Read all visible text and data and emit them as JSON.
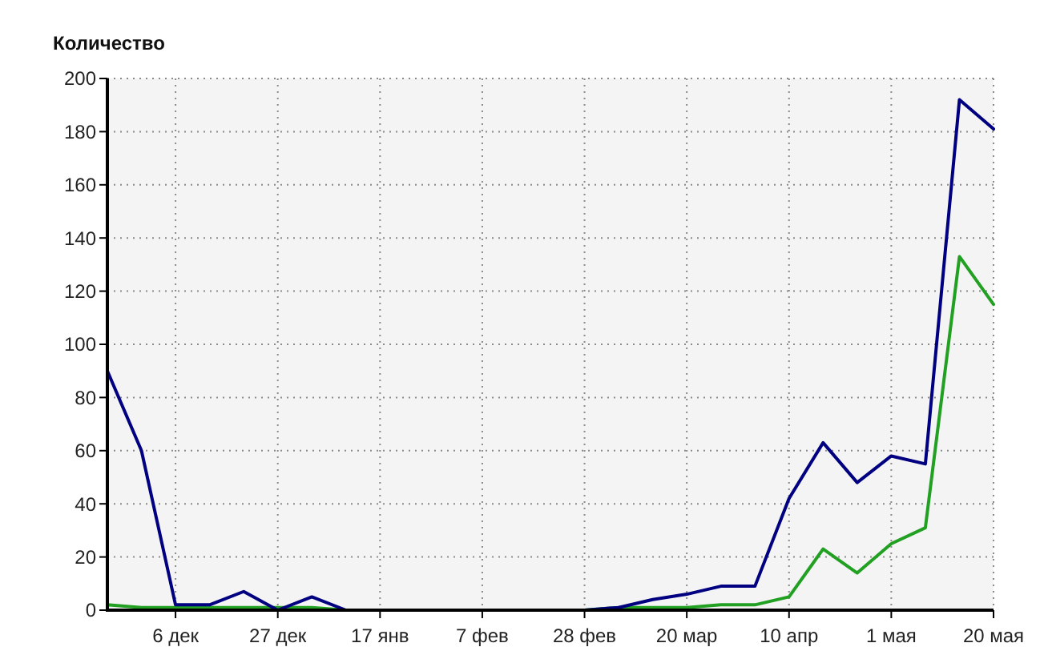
{
  "chart_data": {
    "type": "line",
    "ylabel": "Количество",
    "categories": [
      null,
      null,
      "6 дек",
      null,
      null,
      "27 дек",
      null,
      null,
      "17 янв",
      null,
      null,
      "7 фев",
      null,
      null,
      "28 фев",
      null,
      null,
      "20 мар",
      null,
      null,
      "10 апр",
      null,
      null,
      "1 мая",
      null,
      null,
      "20 мая"
    ],
    "series": [
      {
        "color": "#22a022",
        "values": [
          2,
          1,
          1,
          1,
          1,
          1,
          1,
          0,
          0,
          0,
          0,
          0,
          0,
          0,
          0,
          1,
          1,
          1,
          2,
          2,
          5,
          23,
          14,
          25,
          31,
          133,
          115
        ]
      },
      {
        "color": "#000080",
        "values": [
          90,
          60,
          2,
          2,
          7,
          0,
          5,
          0,
          0,
          0,
          0,
          0,
          0,
          0,
          0,
          1,
          4,
          6,
          9,
          9,
          42,
          63,
          48,
          58,
          55,
          192,
          181
        ]
      }
    ],
    "ylim": [
      0,
      200
    ],
    "yticks": [
      0,
      20,
      40,
      60,
      80,
      100,
      120,
      140,
      160,
      180,
      200
    ],
    "grid": true
  }
}
